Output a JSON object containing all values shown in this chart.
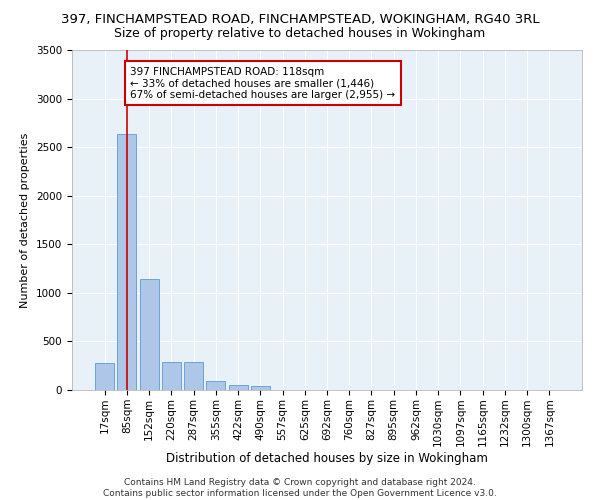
{
  "title1": "397, FINCHAMPSTEAD ROAD, FINCHAMPSTEAD, WOKINGHAM, RG40 3RL",
  "title2": "Size of property relative to detached houses in Wokingham",
  "xlabel": "Distribution of detached houses by size in Wokingham",
  "ylabel": "Number of detached properties",
  "bar_labels": [
    "17sqm",
    "85sqm",
    "152sqm",
    "220sqm",
    "287sqm",
    "355sqm",
    "422sqm",
    "490sqm",
    "557sqm",
    "625sqm",
    "692sqm",
    "760sqm",
    "827sqm",
    "895sqm",
    "962sqm",
    "1030sqm",
    "1097sqm",
    "1165sqm",
    "1232sqm",
    "1300sqm",
    "1367sqm"
  ],
  "bar_values": [
    275,
    2640,
    1145,
    285,
    285,
    95,
    55,
    40,
    0,
    0,
    0,
    0,
    0,
    0,
    0,
    0,
    0,
    0,
    0,
    0,
    0
  ],
  "bar_color": "#aec6e8",
  "bar_edge_color": "#5b9bd5",
  "vline_x": 1.0,
  "vline_color": "#cc0000",
  "annotation_text": "397 FINCHAMPSTEAD ROAD: 118sqm\n← 33% of detached houses are smaller (1,446)\n67% of semi-detached houses are larger (2,955) →",
  "annotation_box_color": "#ffffff",
  "annotation_box_edge": "#cc0000",
  "ylim": [
    0,
    3500
  ],
  "yticks": [
    0,
    500,
    1000,
    1500,
    2000,
    2500,
    3000,
    3500
  ],
  "bg_color": "#e8f0f8",
  "grid_color": "#ffffff",
  "footer": "Contains HM Land Registry data © Crown copyright and database right 2024.\nContains public sector information licensed under the Open Government Licence v3.0.",
  "title1_fontsize": 9.5,
  "title2_fontsize": 9,
  "xlabel_fontsize": 8.5,
  "ylabel_fontsize": 8,
  "tick_fontsize": 7.5,
  "footer_fontsize": 6.5,
  "ann_fontsize": 7.5
}
